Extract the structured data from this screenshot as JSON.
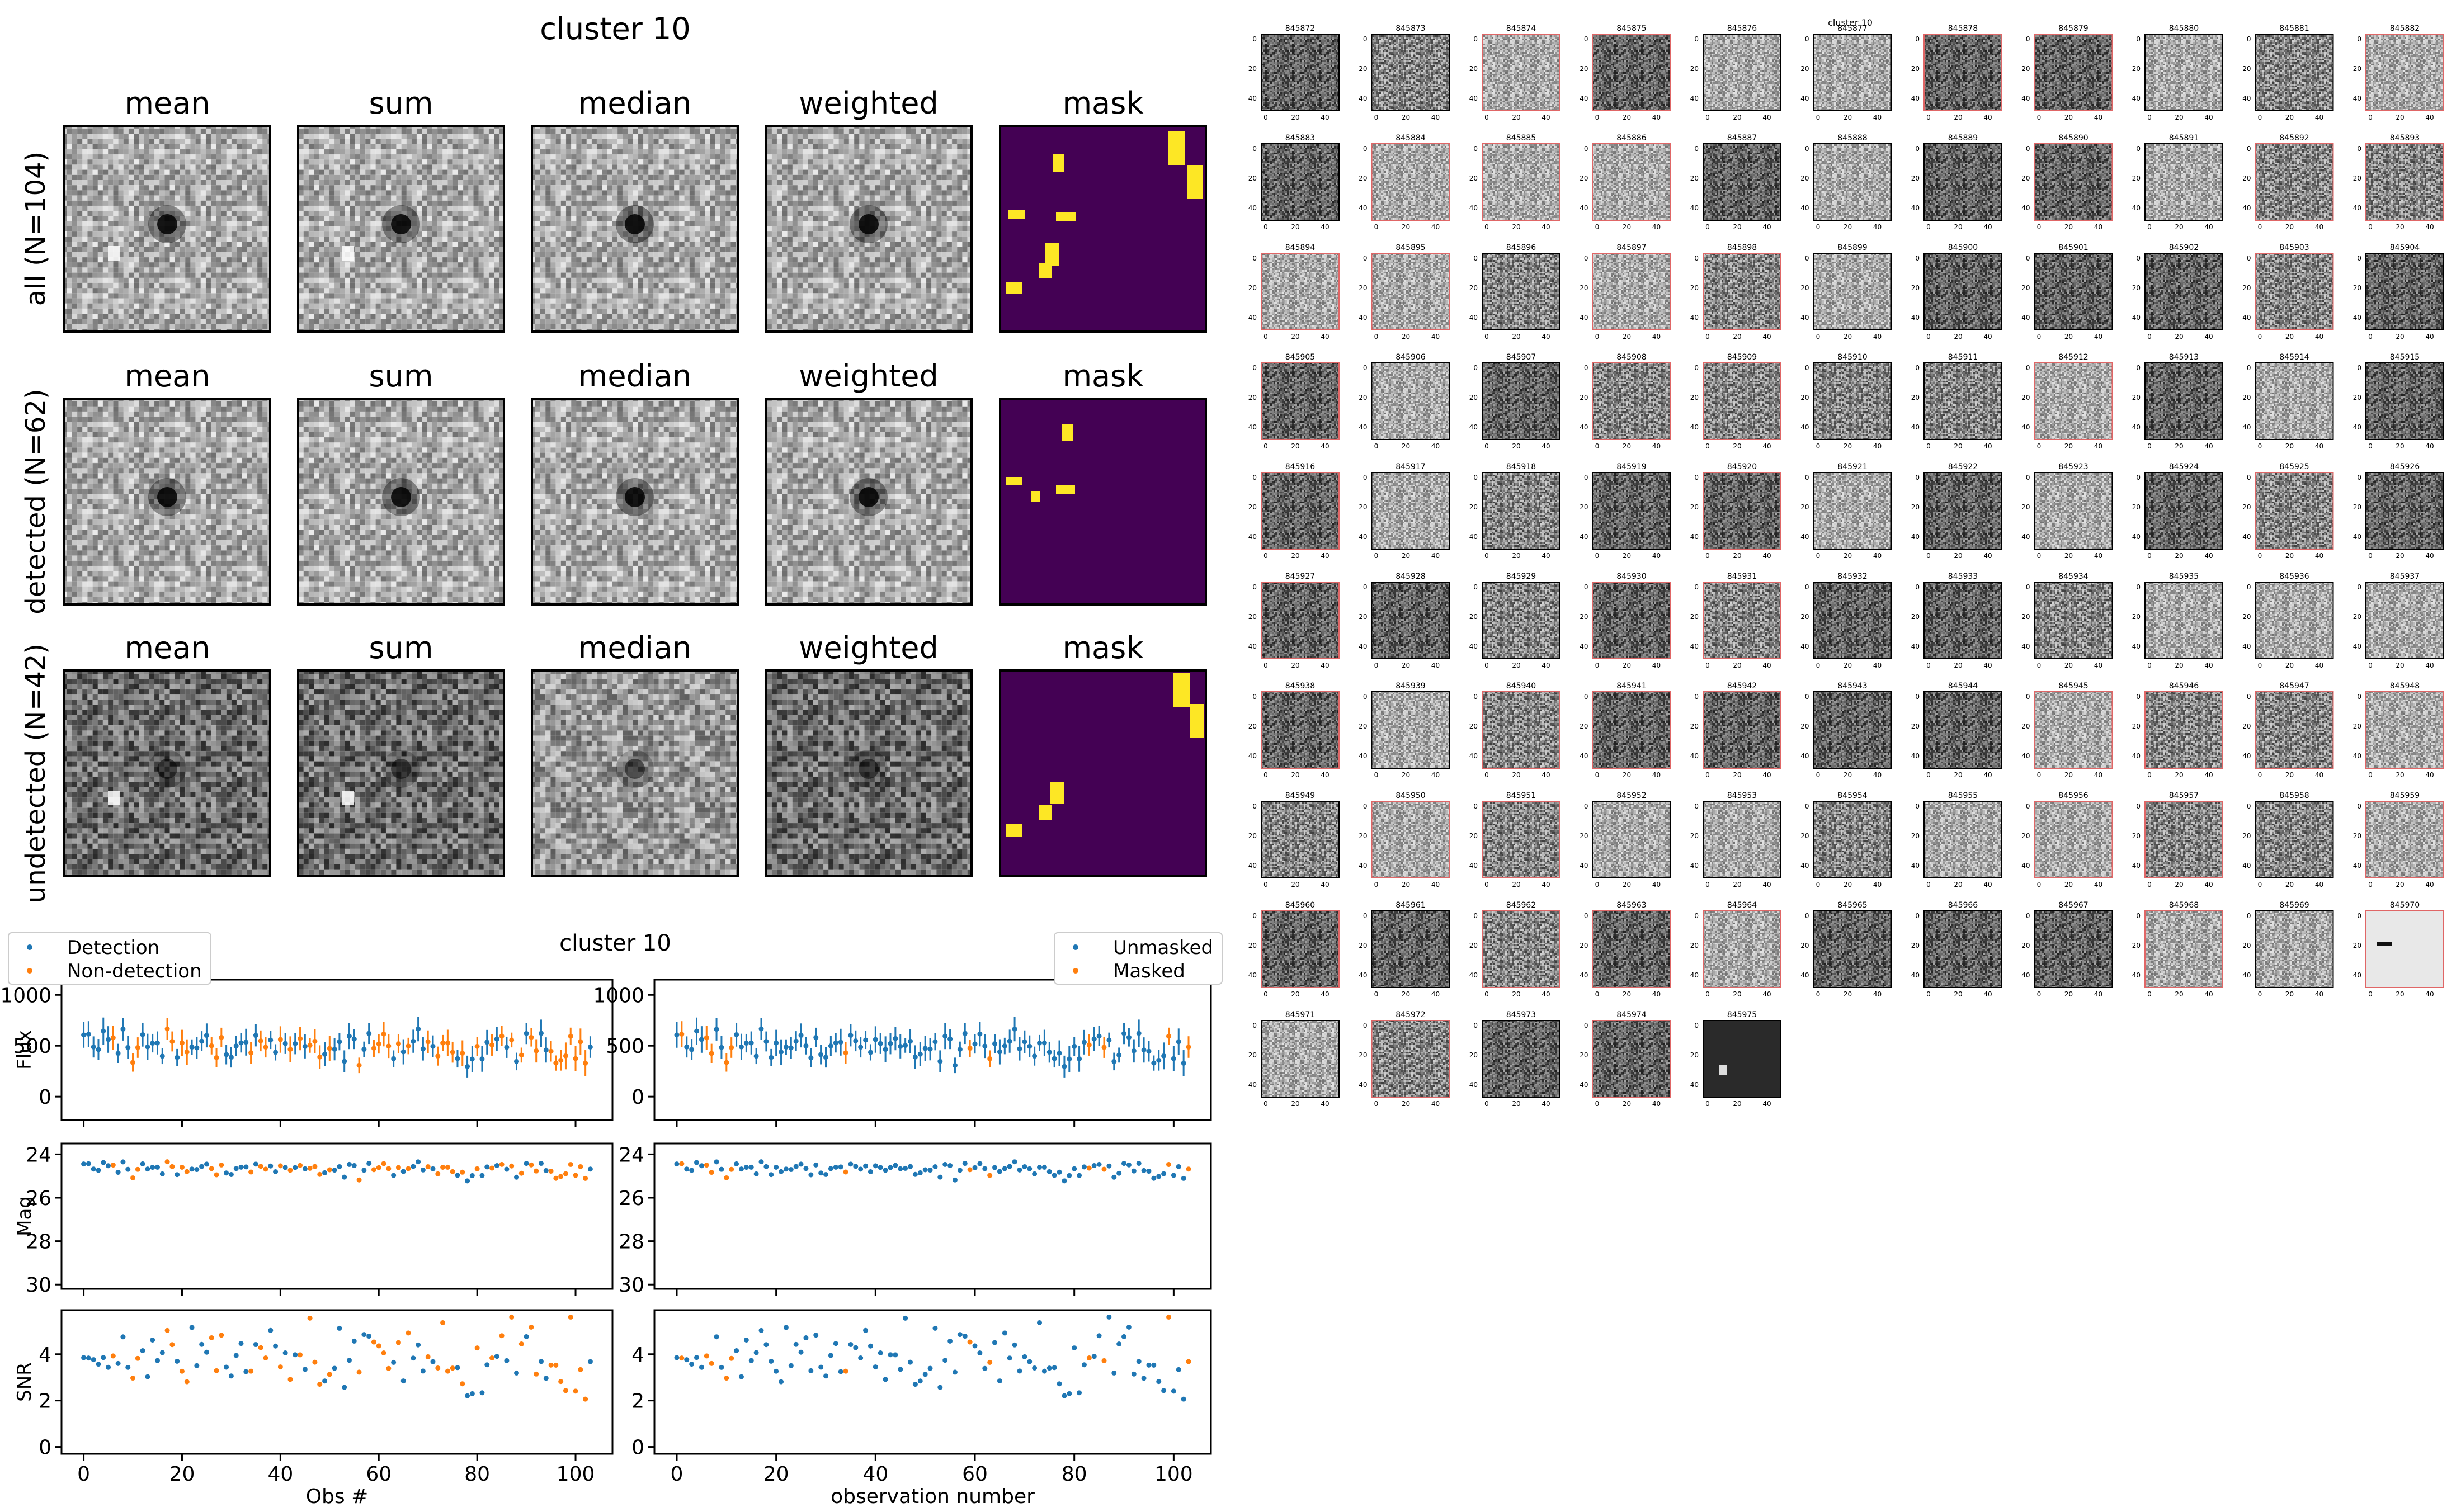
{
  "chart_data": [
    {
      "type": "image-grid",
      "title": "cluster 10",
      "columns": [
        "mean",
        "sum",
        "median",
        "weighted",
        "mask"
      ],
      "rows": [
        {
          "label": "all (N=104)",
          "n": 104
        },
        {
          "label": "detected (N=62)",
          "n": 62
        },
        {
          "label": "undetected (N=42)",
          "n": 42
        }
      ]
    },
    {
      "type": "scatter",
      "title": "cluster 10",
      "subplots": [
        "Flux",
        "Mag",
        "SNR"
      ],
      "xlabels": [
        "Obs #",
        "observation number"
      ],
      "legend_left": {
        "series_a": "Detection",
        "series_b": "Non-detection"
      },
      "legend_right": {
        "series_a": "Unmasked",
        "series_b": "Masked"
      },
      "flux_ticks": [
        "1000",
        "500",
        "0"
      ],
      "mag_ticks": [
        "24",
        "26",
        "28",
        "30"
      ],
      "snr_ticks": [
        "4",
        "2",
        "0"
      ],
      "x_ticks": [
        "0",
        "20",
        "40",
        "60",
        "80",
        "100"
      ],
      "colors": {
        "series_a": "#1f77b4",
        "series_b": "#ff7f0e"
      }
    },
    {
      "type": "heatmap",
      "title": "cluster 10",
      "tiles": [
        "845872",
        "845873",
        "845874",
        "845875",
        "845876",
        "845877",
        "845878",
        "845879",
        "845880",
        "845881",
        "845882",
        "845883",
        "845884",
        "845885",
        "845886",
        "845887",
        "845888",
        "845889",
        "845890",
        "845891",
        "845892",
        "845893",
        "845894",
        "845895",
        "845896",
        "845897",
        "845898",
        "845899",
        "845900",
        "845901",
        "845902",
        "845903",
        "845904",
        "845905",
        "845906",
        "845907",
        "845908",
        "845909",
        "845910",
        "845911",
        "845912",
        "845913",
        "845914",
        "845915",
        "845916",
        "845917",
        "845918",
        "845919",
        "845920",
        "845921",
        "845922",
        "845923",
        "845924",
        "845925",
        "845926",
        "845927",
        "845928",
        "845929",
        "845930",
        "845931",
        "845932",
        "845933",
        "845934",
        "845935",
        "845936",
        "845937",
        "845938",
        "845939",
        "845940",
        "845941",
        "845942",
        "845943",
        "845944",
        "845945",
        "845946",
        "845947",
        "845948",
        "845949",
        "845950",
        "845951",
        "845952",
        "845953",
        "845954",
        "845955",
        "845956",
        "845957",
        "845958",
        "845959",
        "845960",
        "845961",
        "845962",
        "845963",
        "845964",
        "845965",
        "845966",
        "845967",
        "845968",
        "845969",
        "845970",
        "845971",
        "845972",
        "845973",
        "845974",
        "845975"
      ],
      "tile_ticks": {
        "y": [
          "0",
          "20",
          "40"
        ],
        "x": [
          "0",
          "20",
          "40"
        ]
      },
      "masked_tiles": [
        845874,
        845875,
        845878,
        845879,
        845882,
        845884,
        845885,
        845886,
        845890,
        845892,
        845893,
        845894,
        845895,
        845897,
        845898,
        845903,
        845905,
        845908,
        845909,
        845912,
        845916,
        845920,
        845925,
        845927,
        845930,
        845931,
        845938,
        845940,
        845941,
        845942,
        845945,
        845946,
        845947,
        845948,
        845950,
        845951,
        845956,
        845957,
        845959,
        845960,
        845962,
        845963,
        845964,
        845968,
        845970,
        845972,
        845974
      ],
      "mask_color": "#e06666"
    }
  ]
}
